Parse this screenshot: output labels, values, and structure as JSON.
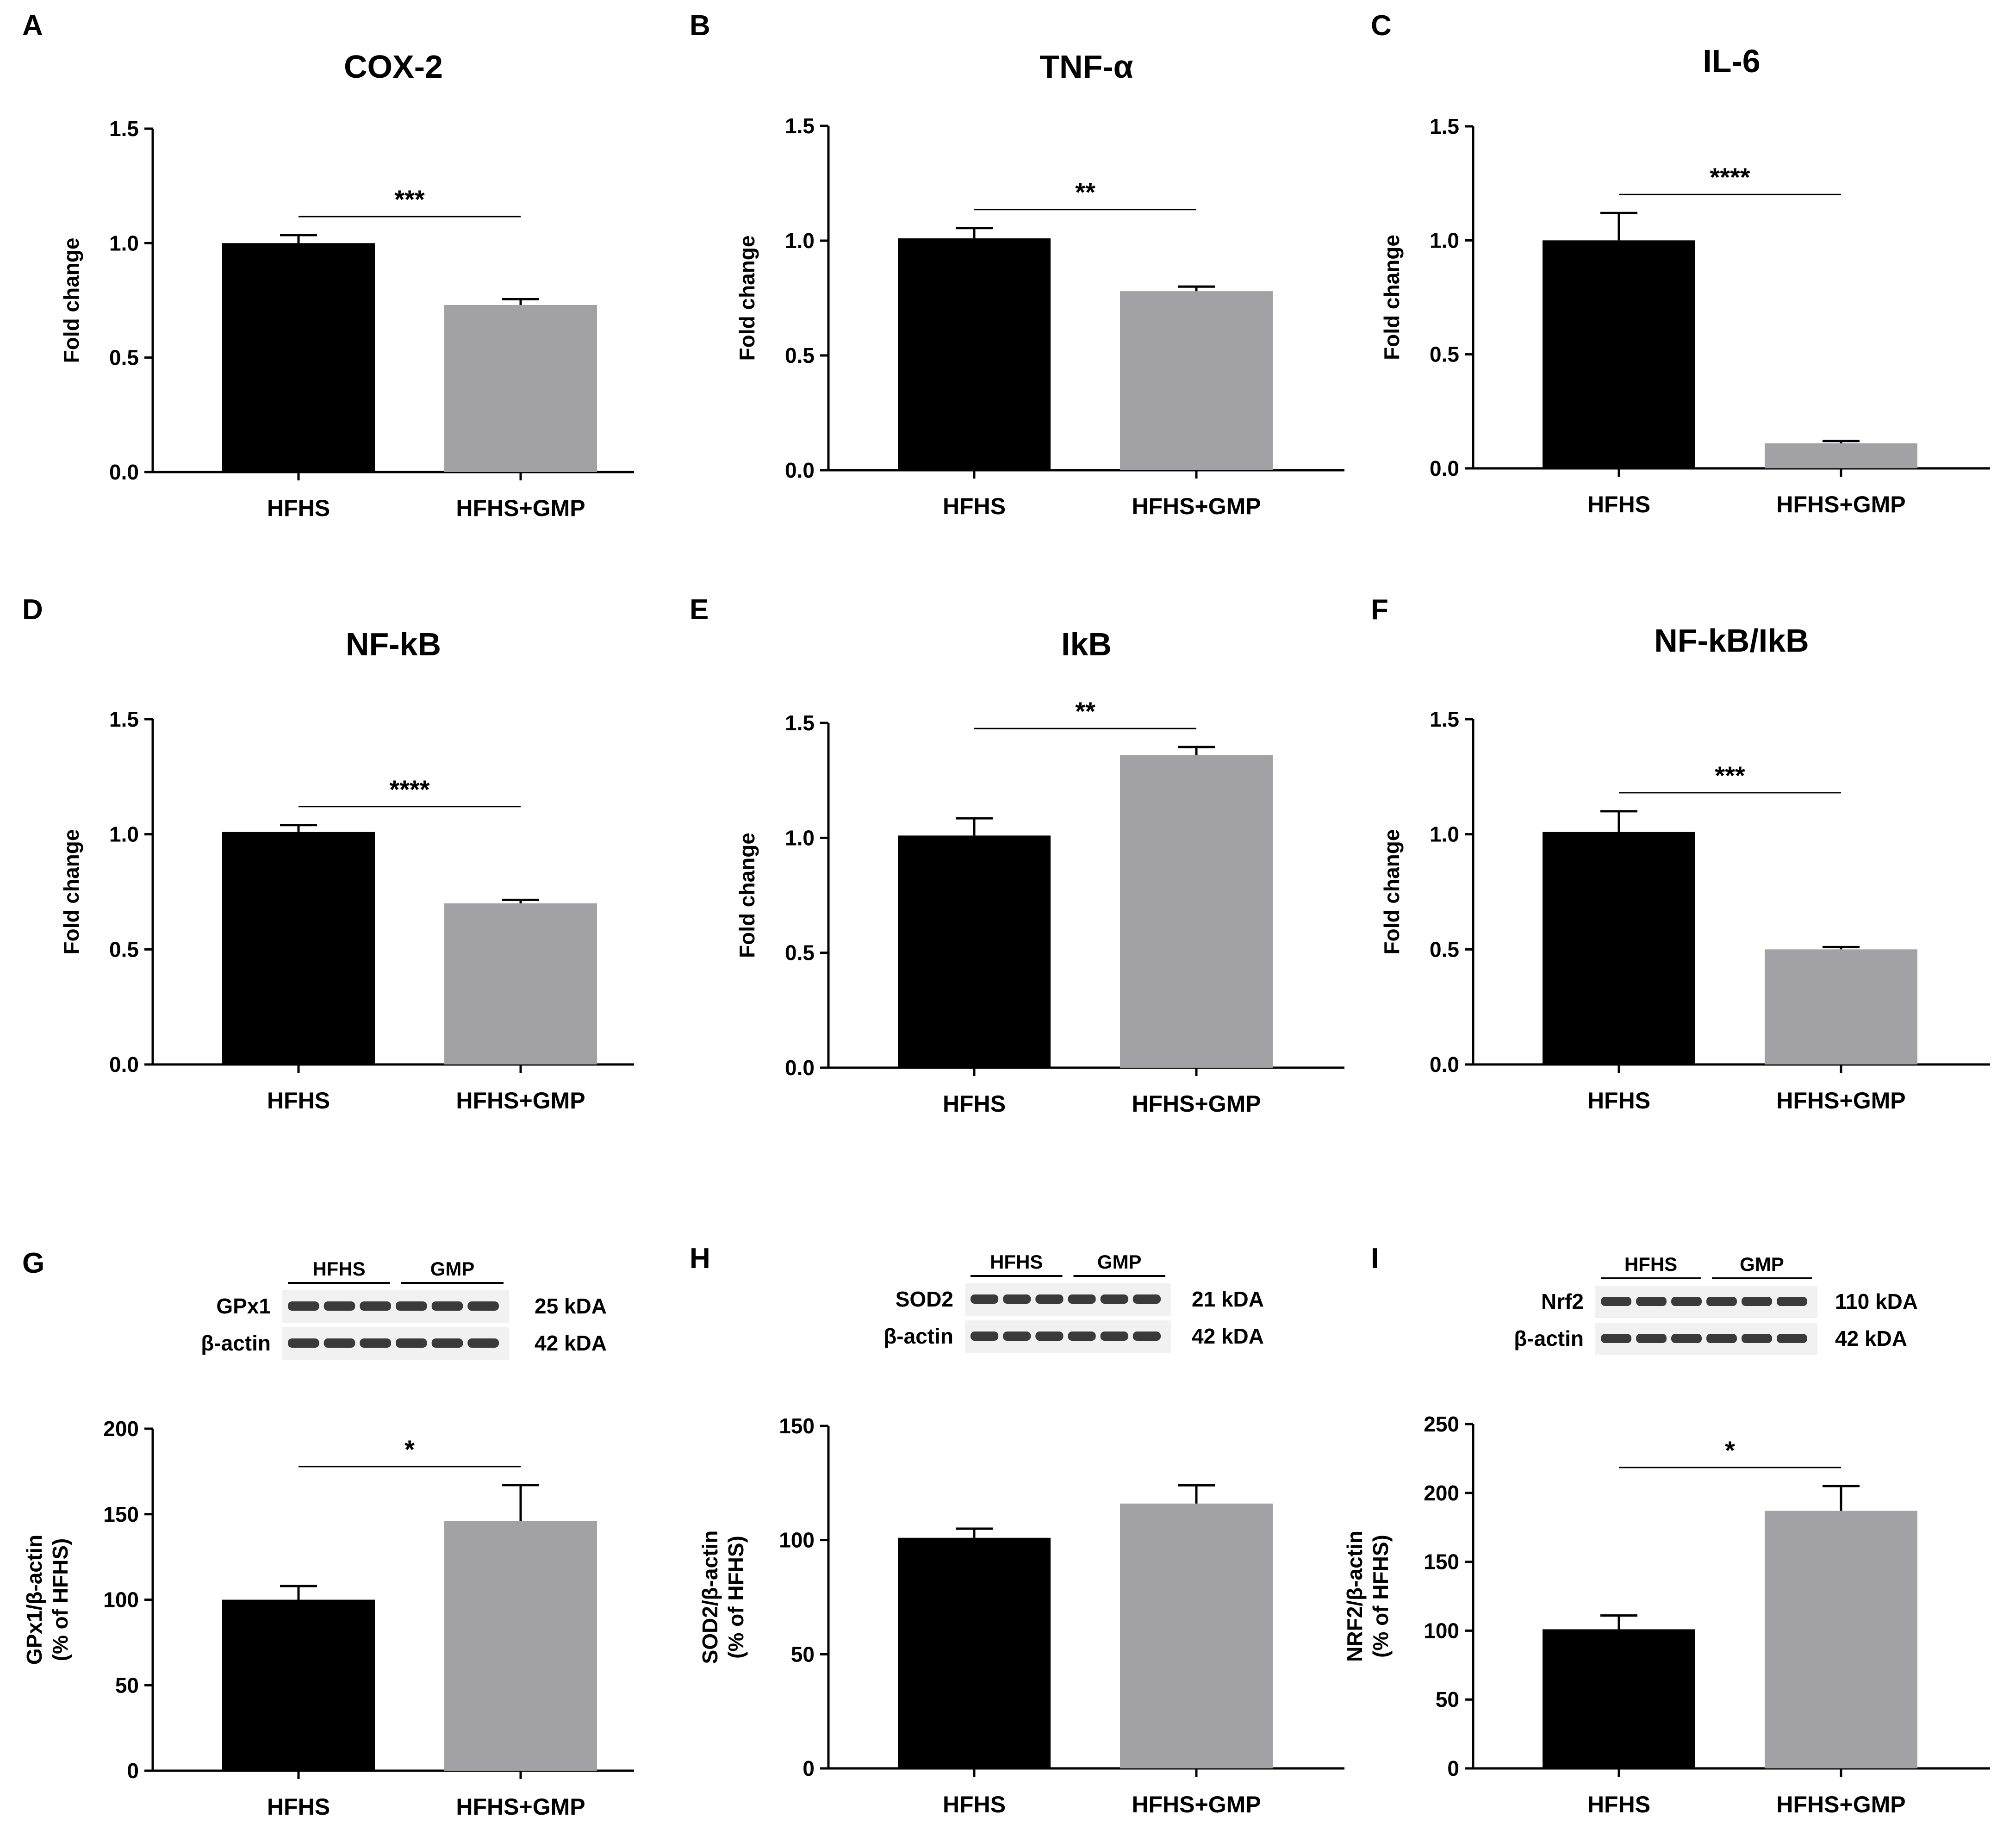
{
  "colors": {
    "hfhs": "#000000",
    "gmp": "#a2a1a6"
  },
  "panels": [
    {
      "letter": "A",
      "title": "COX-2",
      "ylabel": [
        "Fold change"
      ],
      "ylim": [
        0,
        1.5
      ],
      "ticks": [
        "0.0",
        "0.5",
        "1.0",
        "1.5"
      ],
      "categories": [
        "HFHS",
        "HFHS+GMP"
      ],
      "values": [
        1.0,
        0.73
      ],
      "errors": [
        0.035,
        0.025
      ],
      "significance": "***"
    },
    {
      "letter": "B",
      "title": "TNF-α",
      "ylabel": [
        "Fold change"
      ],
      "ylim": [
        0,
        1.5
      ],
      "ticks": [
        "0.0",
        "0.5",
        "1.0",
        "1.5"
      ],
      "categories": [
        "HFHS",
        "HFHS+GMP"
      ],
      "values": [
        1.01,
        0.78
      ],
      "errors": [
        0.045,
        0.02
      ],
      "significance": "**"
    },
    {
      "letter": "C",
      "title": "IL-6",
      "ylabel": [
        "Fold change"
      ],
      "ylim": [
        0,
        1.5
      ],
      "ticks": [
        "0.0",
        "0.5",
        "1.0",
        "1.5"
      ],
      "categories": [
        "HFHS",
        "HFHS+GMP"
      ],
      "values": [
        1.0,
        0.11
      ],
      "errors": [
        0.12,
        0.01
      ],
      "significance": "****"
    },
    {
      "letter": "D",
      "title": "NF-kB",
      "ylabel": [
        "Fold change"
      ],
      "ylim": [
        0,
        1.5
      ],
      "ticks": [
        "0.0",
        "0.5",
        "1.0",
        "1.5"
      ],
      "categories": [
        "HFHS",
        "HFHS+GMP"
      ],
      "values": [
        1.01,
        0.7
      ],
      "errors": [
        0.03,
        0.015
      ],
      "significance": "****"
    },
    {
      "letter": "E",
      "title": "IkB",
      "ylabel": [
        "Fold change"
      ],
      "ylim": [
        0,
        1.5
      ],
      "ticks": [
        "0.0",
        "0.5",
        "1.0",
        "1.5"
      ],
      "categories": [
        "HFHS",
        "HFHS+GMP"
      ],
      "values": [
        1.01,
        1.36
      ],
      "errors": [
        0.075,
        0.035
      ],
      "significance": "**"
    },
    {
      "letter": "F",
      "title": "NF-kB/IkB",
      "ylabel": [
        "Fold change"
      ],
      "ylim": [
        0,
        1.5
      ],
      "ticks": [
        "0.0",
        "0.5",
        "1.0",
        "1.5"
      ],
      "categories": [
        "HFHS",
        "HFHS+GMP"
      ],
      "values": [
        1.01,
        0.5
      ],
      "errors": [
        0.09,
        0.01
      ],
      "significance": "***"
    },
    {
      "letter": "G",
      "title": "",
      "ylabel": [
        "GPx1/β-actin",
        "(% of HFHS)"
      ],
      "ylim": [
        0,
        200
      ],
      "ticks": [
        "0",
        "50",
        "100",
        "150",
        "200"
      ],
      "categories": [
        "HFHS",
        "HFHS+GMP"
      ],
      "values": [
        100,
        146
      ],
      "errors": [
        8,
        21
      ],
      "significance": "*",
      "blot": {
        "groups": [
          "HFHS",
          "GMP"
        ],
        "rows": [
          {
            "protein": "GPx1",
            "size": "25 kDA"
          },
          {
            "protein": "β-actin",
            "size": "42 kDA"
          }
        ]
      }
    },
    {
      "letter": "H",
      "title": "",
      "ylabel": [
        "SOD2/β-actin",
        "(% of HFHS)"
      ],
      "ylim": [
        0,
        150
      ],
      "ticks": [
        "0",
        "50",
        "100",
        "150"
      ],
      "categories": [
        "HFHS",
        "HFHS+GMP"
      ],
      "values": [
        101,
        116
      ],
      "errors": [
        4,
        8
      ],
      "significance": "",
      "blot": {
        "groups": [
          "HFHS",
          "GMP"
        ],
        "rows": [
          {
            "protein": "SOD2",
            "size": "21 kDA"
          },
          {
            "protein": "β-actin",
            "size": "42 kDA"
          }
        ]
      }
    },
    {
      "letter": "I",
      "title": "",
      "ylabel": [
        "NRF2/β-actin",
        "(% of HFHS)"
      ],
      "ylim": [
        0,
        250
      ],
      "ticks": [
        "0",
        "50",
        "100",
        "150",
        "200",
        "250"
      ],
      "categories": [
        "HFHS",
        "HFHS+GMP"
      ],
      "values": [
        101,
        187
      ],
      "errors": [
        10,
        18
      ],
      "significance": "*",
      "blot": {
        "groups": [
          "HFHS",
          "GMP"
        ],
        "rows": [
          {
            "protein": "Nrf2",
            "size": "110 kDA"
          },
          {
            "protein": "β-actin",
            "size": "42 kDA"
          }
        ]
      }
    }
  ],
  "chart_data": [
    {
      "type": "bar",
      "title": "COX-2",
      "categories": [
        "HFHS",
        "HFHS+GMP"
      ],
      "values": [
        1.0,
        0.73
      ],
      "errors": [
        0.035,
        0.025
      ],
      "xlabel": "",
      "ylabel": "Fold change",
      "ylim": [
        0,
        1.5
      ],
      "annotation": "***"
    },
    {
      "type": "bar",
      "title": "TNF-α",
      "categories": [
        "HFHS",
        "HFHS+GMP"
      ],
      "values": [
        1.01,
        0.78
      ],
      "errors": [
        0.045,
        0.02
      ],
      "xlabel": "",
      "ylabel": "Fold change",
      "ylim": [
        0,
        1.5
      ],
      "annotation": "**"
    },
    {
      "type": "bar",
      "title": "IL-6",
      "categories": [
        "HFHS",
        "HFHS+GMP"
      ],
      "values": [
        1.0,
        0.11
      ],
      "errors": [
        0.12,
        0.01
      ],
      "xlabel": "",
      "ylabel": "Fold change",
      "ylim": [
        0,
        1.5
      ],
      "annotation": "****"
    },
    {
      "type": "bar",
      "title": "NF-kB",
      "categories": [
        "HFHS",
        "HFHS+GMP"
      ],
      "values": [
        1.01,
        0.7
      ],
      "errors": [
        0.03,
        0.015
      ],
      "xlabel": "",
      "ylabel": "Fold change",
      "ylim": [
        0,
        1.5
      ],
      "annotation": "****"
    },
    {
      "type": "bar",
      "title": "IkB",
      "categories": [
        "HFHS",
        "HFHS+GMP"
      ],
      "values": [
        1.01,
        1.36
      ],
      "errors": [
        0.075,
        0.035
      ],
      "xlabel": "",
      "ylabel": "Fold change",
      "ylim": [
        0,
        1.5
      ],
      "annotation": "**"
    },
    {
      "type": "bar",
      "title": "NF-kB/IkB",
      "categories": [
        "HFHS",
        "HFHS+GMP"
      ],
      "values": [
        1.01,
        0.5
      ],
      "errors": [
        0.09,
        0.01
      ],
      "xlabel": "",
      "ylabel": "Fold change",
      "ylim": [
        0,
        1.5
      ],
      "annotation": "***"
    },
    {
      "type": "bar",
      "title": "",
      "categories": [
        "HFHS",
        "HFHS+GMP"
      ],
      "values": [
        100,
        146
      ],
      "errors": [
        8,
        21
      ],
      "xlabel": "",
      "ylabel": "GPx1/β-actin (% of HFHS)",
      "ylim": [
        0,
        200
      ],
      "annotation": "*"
    },
    {
      "type": "bar",
      "title": "",
      "categories": [
        "HFHS",
        "HFHS+GMP"
      ],
      "values": [
        101,
        116
      ],
      "errors": [
        4,
        8
      ],
      "xlabel": "",
      "ylabel": "SOD2/β-actin (% of HFHS)",
      "ylim": [
        0,
        150
      ],
      "annotation": ""
    },
    {
      "type": "bar",
      "title": "",
      "categories": [
        "HFHS",
        "HFHS+GMP"
      ],
      "values": [
        101,
        187
      ],
      "errors": [
        10,
        18
      ],
      "xlabel": "",
      "ylabel": "NRF2/β-actin (% of HFHS)",
      "ylim": [
        0,
        250
      ],
      "annotation": "*"
    }
  ]
}
